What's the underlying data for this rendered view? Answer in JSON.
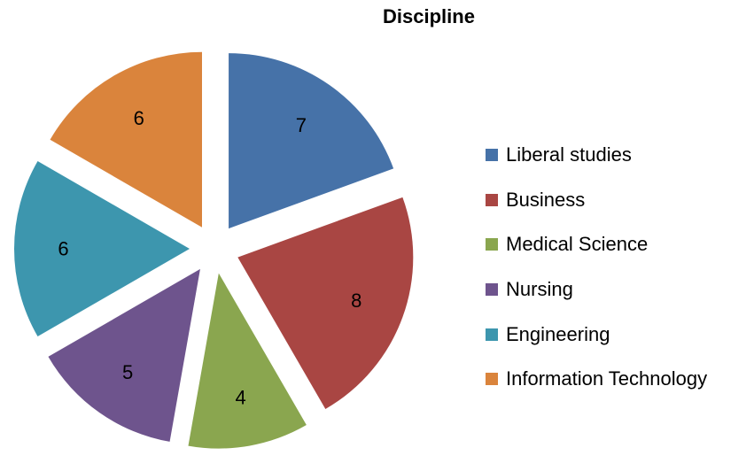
{
  "chart_data": {
    "type": "pie",
    "title": "Discipline",
    "categories": [
      "Liberal studies",
      "Business",
      "Medical Science",
      "Nursing",
      "Engineering",
      "Information Technology"
    ],
    "values": [
      7,
      8,
      4,
      5,
      6,
      6
    ],
    "colors": [
      "#4672A8",
      "#A94643",
      "#8AA64F",
      "#6E548D",
      "#3D96AE",
      "#DA843C"
    ],
    "exploded": true,
    "data_labels": true,
    "legend_position": "right"
  }
}
